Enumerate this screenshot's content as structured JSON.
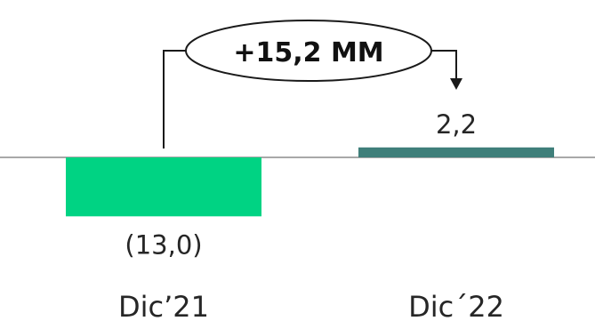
{
  "chart_data": {
    "type": "bar",
    "categories": [
      "Dic’21",
      "Dic´22"
    ],
    "values": [
      -13.0,
      2.2
    ],
    "value_labels": [
      "(13,0)",
      "2,2"
    ],
    "colors": [
      "#00D383",
      "#3F7F7A"
    ],
    "change_annotation": "+15,2 MM",
    "axis_color": "#8C8C8C",
    "ylim": [
      -15,
      6
    ]
  }
}
